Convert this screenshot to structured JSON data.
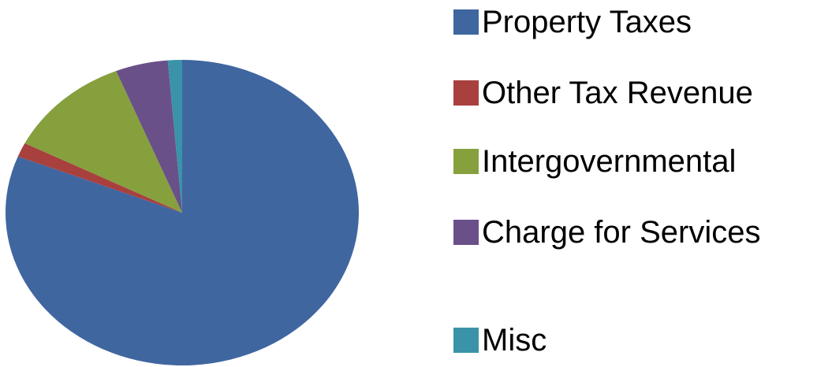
{
  "chart_data": {
    "type": "pie",
    "categories": [
      "Property Taxes",
      "Other Tax Revenue",
      "Intergovernmental",
      "Charge for Services",
      "Misc"
    ],
    "values": [
      81,
      1.5,
      11.4,
      4.8,
      1.3
    ],
    "colors": [
      "#4066a0",
      "#a8403e",
      "#86a03e",
      "#6a5088",
      "#3a93a9"
    ],
    "legend": "right"
  }
}
